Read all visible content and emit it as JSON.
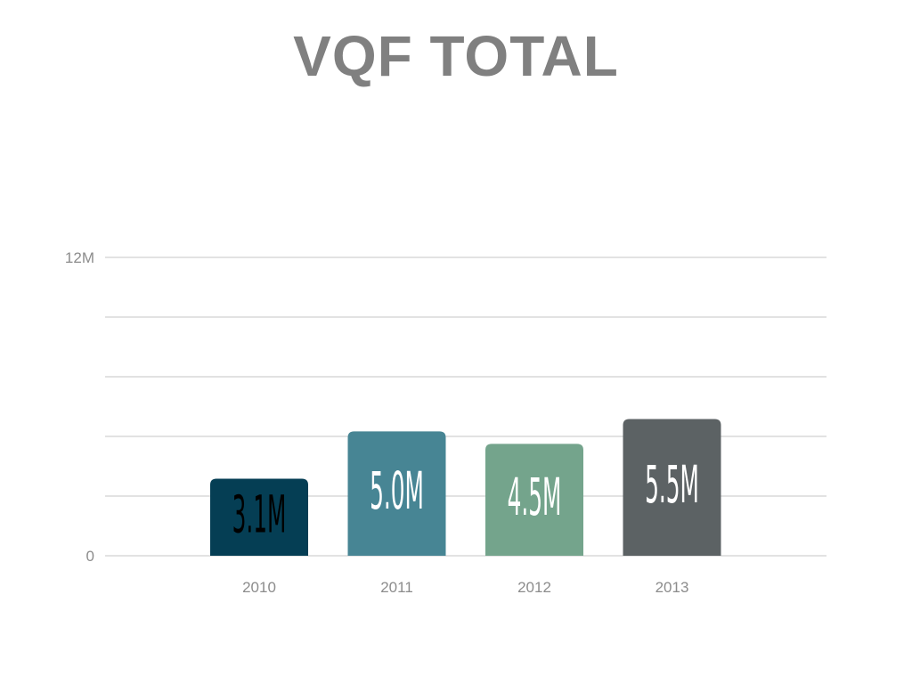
{
  "chart_data": {
    "type": "bar",
    "title": "VQF TOTAL",
    "xlabel": "",
    "ylabel": "",
    "categories": [
      "2010",
      "2011",
      "2012",
      "2013"
    ],
    "values": [
      3.1,
      5.0,
      4.5,
      5.5
    ],
    "data_labels": [
      "3.1M",
      "5.0M",
      "4.5M",
      "5.5M"
    ],
    "colors": [
      "#053e54",
      "#478594",
      "#74a48c",
      "#5c6264"
    ],
    "label_colors": [
      "#000000",
      "#ffffff",
      "#ffffff",
      "#ffffff"
    ],
    "ylim": [
      0,
      12
    ],
    "yticks": [
      {
        "value": 0,
        "label": "0"
      },
      {
        "value": 12,
        "label": "12M"
      }
    ],
    "gridlines": [
      0,
      2.4,
      4.8,
      7.2,
      9.6,
      12
    ],
    "grid": true,
    "legend": "none"
  }
}
